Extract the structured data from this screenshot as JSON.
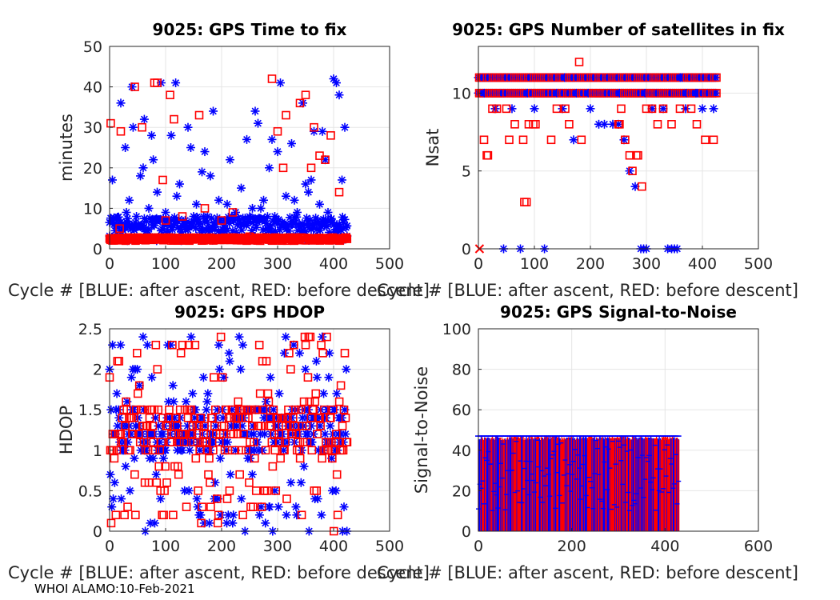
{
  "footer": "WHOI ALAMO:10-Feb-2021",
  "colors": {
    "blue": "#0000ff",
    "red": "#ff0000",
    "grid": "#e5e5e5",
    "axis": "#262626"
  },
  "chart_data": [
    {
      "type": "scatter",
      "title": "9025: GPS Time to fix",
      "xlabel": "Cycle #  [BLUE: after ascent, RED: before descent]",
      "ylabel": "minutes",
      "xlim": [
        0,
        500
      ],
      "ylim": [
        0,
        50
      ],
      "xticks": [
        0,
        100,
        200,
        300,
        400,
        500
      ],
      "yticks": [
        0,
        10,
        20,
        30,
        40,
        50
      ],
      "series": [
        {
          "name": "after ascent",
          "marker": "asterisk",
          "x": [
            5,
            12,
            20,
            28,
            35,
            42,
            48,
            55,
            62,
            70,
            78,
            85,
            92,
            100,
            110,
            118,
            125,
            135,
            145,
            155,
            165,
            175,
            185,
            195,
            205,
            215,
            225,
            235,
            245,
            255,
            265,
            275,
            285,
            295,
            305,
            315,
            325,
            335,
            345,
            355,
            365,
            375,
            385,
            395,
            405,
            415,
            420,
            8,
            30,
            60,
            90,
            120,
            150,
            180,
            210,
            240,
            270,
            300,
            330,
            360,
            390,
            410,
            40,
            75,
            140,
            170,
            260,
            290,
            350,
            380,
            400
          ],
          "y": [
            17,
            6,
            36,
            25,
            12,
            30,
            8,
            18,
            32,
            10,
            22,
            14,
            41,
            9,
            28,
            41,
            16,
            7,
            25,
            11,
            19,
            8,
            34,
            12,
            7,
            22,
            9,
            15,
            27,
            10,
            31,
            12,
            20,
            8,
            41,
            13,
            26,
            9,
            36,
            14,
            29,
            11,
            22,
            7,
            41,
            17,
            30,
            6,
            9,
            20,
            7,
            13,
            8,
            18,
            11,
            6,
            10,
            24,
            12,
            17,
            9,
            38,
            40,
            28,
            30,
            24,
            34,
            27,
            16,
            29,
            42
          ],
          "baseline": 5
        },
        {
          "name": "before descent",
          "marker": "square",
          "x": [
            2,
            20,
            45,
            58,
            80,
            95,
            108,
            115,
            160,
            170,
            220,
            290,
            300,
            315,
            340,
            350,
            365,
            375,
            385,
            395,
            410,
            85,
            100,
            130,
            200,
            250,
            310,
            360,
            18
          ],
          "y": [
            31,
            29,
            40,
            30,
            41,
            17,
            38,
            32,
            33,
            10,
            9,
            42,
            29,
            33,
            36,
            38,
            30,
            23,
            22,
            28,
            14,
            41,
            7,
            8,
            7,
            3,
            20,
            20,
            5
          ],
          "baseline": 2
        }
      ]
    },
    {
      "type": "scatter",
      "title": "9025: GPS Number of satellites in fix",
      "xlabel": "Cycle #  [BLUE: after ascent, RED: before descent]",
      "ylabel": "Nsat",
      "xlim": [
        0,
        500
      ],
      "ylim": [
        0,
        13
      ],
      "xticks": [
        0,
        100,
        200,
        300,
        400,
        500
      ],
      "yticks": [
        0,
        5,
        10
      ],
      "series": [
        {
          "name": "after ascent",
          "marker": "asterisk",
          "x": [
            45,
            75,
            118,
            290,
            295,
            300,
            338,
            345,
            350,
            355,
            270,
            280,
            260,
            250,
            240,
            30,
            60,
            100,
            150,
            200,
            310,
            330,
            370,
            400,
            420,
            170,
            215,
            225
          ],
          "y": [
            0,
            0,
            0,
            0,
            0,
            0,
            0,
            0,
            0,
            0,
            5,
            4,
            7,
            8,
            8,
            9,
            9,
            9,
            9,
            9,
            9,
            9,
            9,
            9,
            9,
            7,
            8,
            8
          ]
        },
        {
          "name": "before descent",
          "marker": "square",
          "x": [
            10,
            15,
            17,
            25,
            33,
            50,
            55,
            65,
            80,
            82,
            86,
            90,
            98,
            102,
            130,
            140,
            155,
            162,
            180,
            255,
            262,
            270,
            275,
            282,
            285,
            292,
            300,
            310,
            320,
            330,
            345,
            360,
            380,
            390,
            405,
            420,
            252,
            250,
            184
          ],
          "y": [
            7,
            6,
            6,
            9,
            9,
            9,
            7,
            8,
            7,
            3,
            3,
            8,
            8,
            8,
            7,
            9,
            9,
            8,
            12,
            9,
            7,
            6,
            5,
            6,
            6,
            4,
            9,
            9,
            8,
            9,
            8,
            9,
            9,
            8,
            7,
            7,
            8,
            8,
            7
          ]
        },
        {
          "name": "cross",
          "marker": "x",
          "x": [
            2
          ],
          "y": [
            0
          ]
        }
      ],
      "bands": [
        10,
        11
      ]
    },
    {
      "type": "scatter",
      "title": "9025: GPS HDOP",
      "xlabel": "Cycle #  [BLUE: after ascent, RED: before descent]",
      "ylabel": "HDOP",
      "xlim": [
        0,
        500
      ],
      "ylim": [
        0,
        2.5
      ],
      "xticks": [
        0,
        100,
        200,
        300,
        400,
        500
      ],
      "yticks": [
        0,
        0.5,
        1,
        1.5,
        2,
        2.5
      ],
      "yticklabels": [
        "0",
        "0.5",
        "1",
        "1.5",
        "2",
        "2.5"
      ]
    },
    {
      "type": "bar",
      "title": "9025: GPS Signal-to-Noise",
      "xlabel": "Cycle #  [BLUE: after ascent, RED: before descent]",
      "ylabel": "Signal-to-Noise",
      "xlim": [
        0,
        600
      ],
      "ylim": [
        0,
        100
      ],
      "xticks": [
        0,
        200,
        400,
        600
      ],
      "yticks": [
        0,
        20,
        40,
        60,
        80,
        100
      ],
      "cycle_range": [
        0,
        430
      ],
      "snr_max": 47
    }
  ]
}
